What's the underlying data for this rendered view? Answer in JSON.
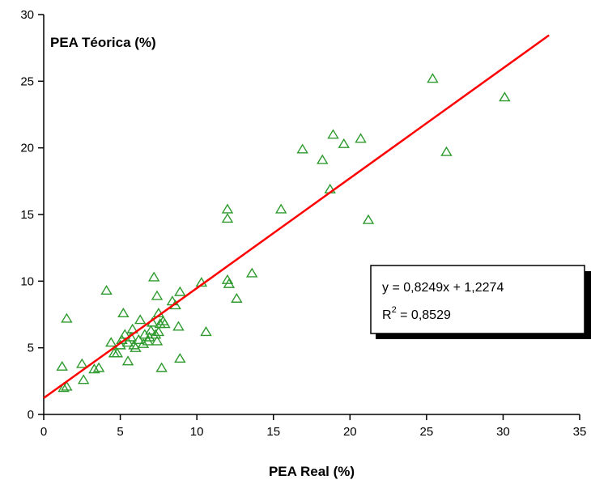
{
  "chart_data": {
    "type": "scatter",
    "title": "",
    "ylabel": "PEA Téorica (%)",
    "xlabel": "PEA Real (%)",
    "xlim": [
      0,
      35
    ],
    "ylim": [
      0,
      30
    ],
    "xticks": [
      0,
      5,
      10,
      15,
      20,
      25,
      30,
      35
    ],
    "yticks": [
      0,
      5,
      10,
      15,
      20,
      25,
      30
    ],
    "grid": false,
    "marker_color": "#2e9a2e",
    "line_color": "#ff0000",
    "series": [
      {
        "marker": "triangle",
        "points": [
          [
            1.2,
            3.6
          ],
          [
            1.3,
            2.0
          ],
          [
            1.5,
            7.2
          ],
          [
            1.5,
            2.1
          ],
          [
            2.5,
            3.8
          ],
          [
            2.6,
            2.6
          ],
          [
            3.3,
            3.4
          ],
          [
            3.6,
            3.5
          ],
          [
            4.1,
            9.3
          ],
          [
            4.4,
            5.4
          ],
          [
            4.6,
            4.6
          ],
          [
            4.8,
            4.6
          ],
          [
            5.0,
            5.2
          ],
          [
            5.1,
            5.6
          ],
          [
            5.2,
            7.6
          ],
          [
            5.3,
            6.0
          ],
          [
            5.5,
            4.0
          ],
          [
            5.5,
            5.4
          ],
          [
            5.7,
            5.8
          ],
          [
            5.8,
            6.4
          ],
          [
            5.9,
            5.2
          ],
          [
            6.0,
            5.0
          ],
          [
            6.2,
            5.6
          ],
          [
            6.3,
            7.1
          ],
          [
            6.5,
            5.3
          ],
          [
            6.6,
            6.0
          ],
          [
            6.8,
            5.5
          ],
          [
            6.9,
            5.8
          ],
          [
            7.0,
            6.3
          ],
          [
            7.1,
            6.9
          ],
          [
            7.2,
            10.3
          ],
          [
            7.3,
            6.0
          ],
          [
            7.4,
            5.5
          ],
          [
            7.4,
            8.9
          ],
          [
            7.5,
            6.2
          ],
          [
            7.5,
            7.6
          ],
          [
            7.6,
            6.8
          ],
          [
            7.7,
            3.5
          ],
          [
            7.8,
            7.0
          ],
          [
            7.9,
            6.8
          ],
          [
            8.4,
            8.5
          ],
          [
            8.6,
            8.2
          ],
          [
            8.8,
            6.6
          ],
          [
            8.9,
            4.2
          ],
          [
            8.9,
            9.2
          ],
          [
            10.3,
            9.9
          ],
          [
            10.6,
            6.2
          ],
          [
            12.0,
            15.4
          ],
          [
            12.0,
            14.7
          ],
          [
            12.0,
            10.1
          ],
          [
            12.1,
            9.8
          ],
          [
            12.6,
            8.7
          ],
          [
            13.6,
            10.6
          ],
          [
            15.5,
            15.4
          ],
          [
            16.9,
            19.9
          ],
          [
            18.2,
            19.1
          ],
          [
            18.7,
            16.9
          ],
          [
            18.9,
            21.0
          ],
          [
            19.6,
            20.3
          ],
          [
            20.7,
            20.7
          ],
          [
            21.2,
            14.6
          ],
          [
            25.4,
            25.2
          ],
          [
            26.3,
            19.7
          ],
          [
            30.1,
            23.8
          ]
        ]
      }
    ],
    "fit": {
      "slope": 0.8249,
      "intercept": 1.2274,
      "x_range": [
        0,
        33
      ],
      "equation": "y = 0,8249x + 1,2274",
      "r2_prefix": "R",
      "r2_sup": "2",
      "r2_value": " = 0,8529"
    }
  }
}
